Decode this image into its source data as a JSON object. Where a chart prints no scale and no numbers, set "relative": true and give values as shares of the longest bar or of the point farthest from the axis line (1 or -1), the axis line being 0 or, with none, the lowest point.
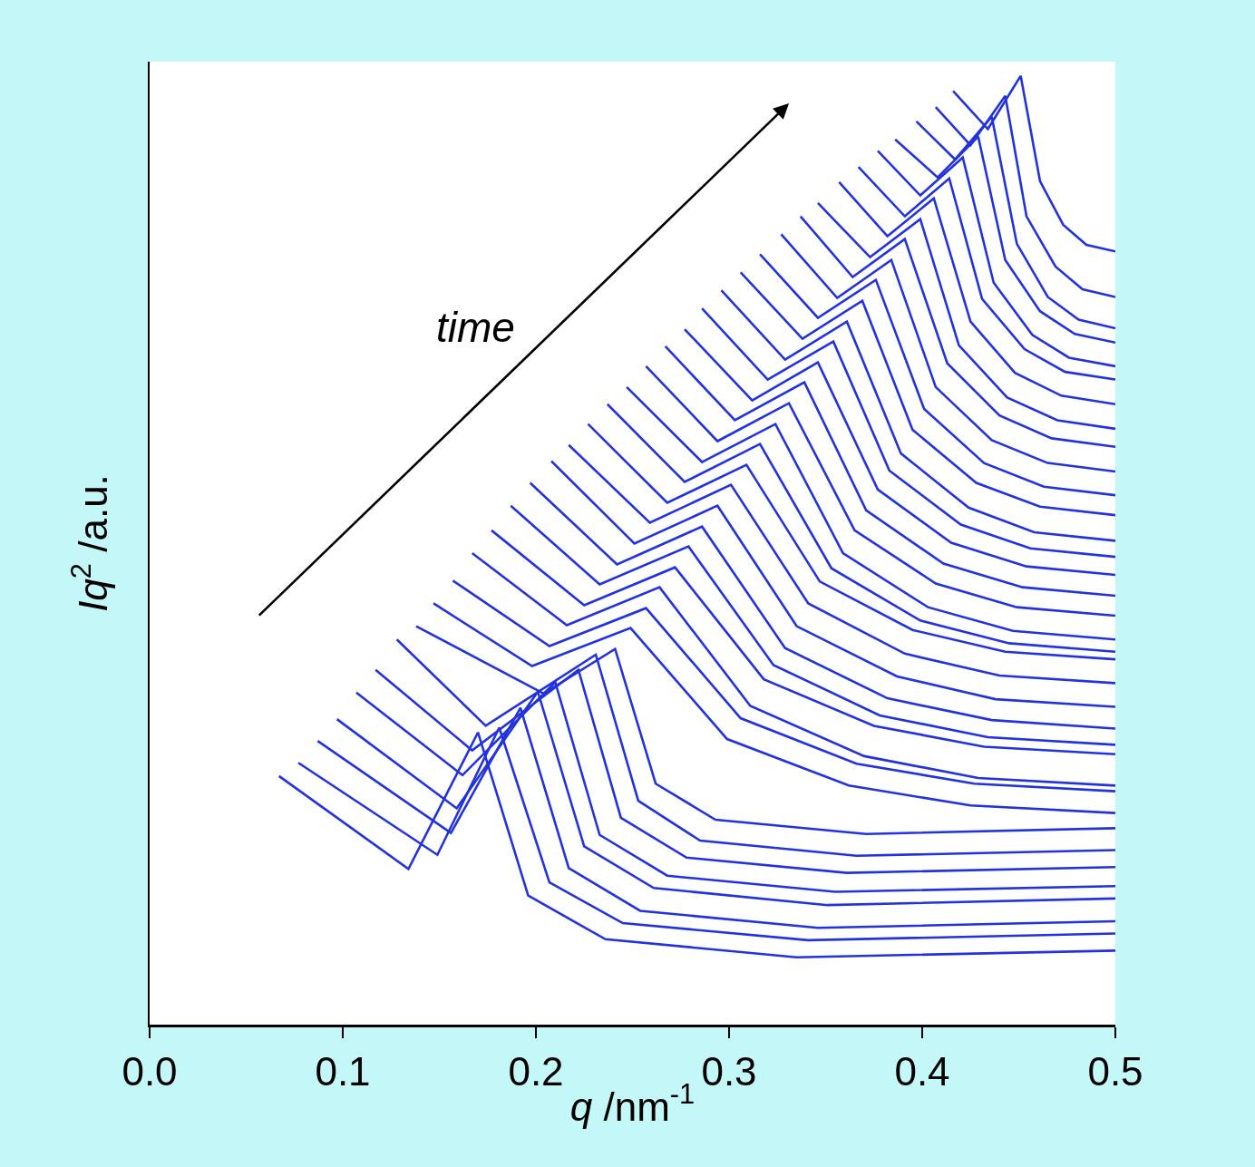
{
  "chart_data": {
    "type": "line",
    "relative": true,
    "xlabel": "q /nm$^{-1}$",
    "ylabel": "Iq$^{2}$ /a.u.",
    "annotations": [
      "time"
    ],
    "xlim": [
      0,
      0.5
    ],
    "xticks": [
      {
        "value": 0,
        "label": "0.0"
      },
      0.1,
      0.2,
      0.3,
      0.4,
      0.5
    ],
    "grid": false,
    "marker": "none",
    "line_style": "solid",
    "series": [
      {
        "color": "#2233dd",
        "x": [
          0.067,
          0.134,
          0.17,
          0.196,
          0.236,
          0.335,
          0.5
        ],
        "values": [
          0.262,
          0.164,
          0.308,
          0.136,
          0.09,
          0.071,
          0.078
        ]
      },
      {
        "color": "#2233dd",
        "x": [
          0.077,
          0.149,
          0.181,
          0.207,
          0.245,
          0.341,
          0.5
        ],
        "values": [
          0.276,
          0.179,
          0.313,
          0.15,
          0.107,
          0.089,
          0.096
        ]
      },
      {
        "color": "#2233dd",
        "x": [
          0.087,
          0.156,
          0.192,
          0.217,
          0.254,
          0.346,
          0.5
        ],
        "values": [
          0.299,
          0.202,
          0.334,
          0.165,
          0.12,
          0.102,
          0.109
        ]
      },
      {
        "color": "#2233dd",
        "x": [
          0.097,
          0.159,
          0.201,
          0.225,
          0.261,
          0.351,
          0.5
        ],
        "values": [
          0.322,
          0.228,
          0.351,
          0.188,
          0.144,
          0.126,
          0.133
        ]
      },
      {
        "color": "#2233dd",
        "x": [
          0.107,
          0.162,
          0.21,
          0.233,
          0.268,
          0.355,
          0.5
        ],
        "values": [
          0.35,
          0.263,
          0.361,
          0.2,
          0.157,
          0.14,
          0.146
        ]
      },
      {
        "color": "#2233dd",
        "x": [
          0.117,
          0.167,
          0.222,
          0.244,
          0.278,
          0.361,
          0.5
        ],
        "values": [
          0.374,
          0.289,
          0.374,
          0.218,
          0.176,
          0.16,
          0.166
        ]
      },
      {
        "color": "#2233dd",
        "x": [
          0.128,
          0.174,
          0.231,
          0.253,
          0.285,
          0.366,
          0.5
        ],
        "values": [
          0.406,
          0.315,
          0.39,
          0.236,
          0.194,
          0.178,
          0.184
        ]
      },
      {
        "color": "#2233dd",
        "x": [
          0.138,
          0.204,
          0.241,
          0.262,
          0.293,
          0.371,
          0.5
        ],
        "values": [
          0.42,
          0.349,
          0.396,
          0.254,
          0.216,
          0.201,
          0.207
        ]
      },
      {
        "color": "#2233dd",
        "x": [
          0.147,
          0.198,
          0.249,
          0.299,
          0.362,
          0.425,
          0.5
        ],
        "values": [
          0.444,
          0.378,
          0.418,
          0.301,
          0.252,
          0.231,
          0.223
        ]
      },
      {
        "color": "#2233dd",
        "x": [
          0.157,
          0.207,
          0.257,
          0.306,
          0.366,
          0.427,
          0.5
        ],
        "values": [
          0.468,
          0.399,
          0.439,
          0.323,
          0.275,
          0.254,
          0.246
        ]
      },
      {
        "color": "#2233dd",
        "x": [
          0.167,
          0.216,
          0.264,
          0.311,
          0.37,
          0.429,
          0.5
        ],
        "values": [
          0.497,
          0.421,
          0.461,
          0.336,
          0.283,
          0.26,
          0.252
        ]
      },
      {
        "color": "#2233dd",
        "x": [
          0.177,
          0.225,
          0.272,
          0.318,
          0.375,
          0.432,
          0.5
        ],
        "values": [
          0.521,
          0.442,
          0.482,
          0.364,
          0.315,
          0.293,
          0.285
        ]
      },
      {
        "color": "#2233dd",
        "x": [
          0.187,
          0.233,
          0.279,
          0.323,
          0.378,
          0.434,
          0.5
        ],
        "values": [
          0.547,
          0.464,
          0.504,
          0.379,
          0.326,
          0.303,
          0.295
        ]
      },
      {
        "color": "#2233dd",
        "x": [
          0.197,
          0.242,
          0.286,
          0.329,
          0.382,
          0.436,
          0.5
        ],
        "values": [
          0.571,
          0.485,
          0.525,
          0.397,
          0.344,
          0.321,
          0.312
        ]
      },
      {
        "color": "#2233dd",
        "x": [
          0.208,
          0.251,
          0.294,
          0.335,
          0.387,
          0.438,
          0.5
        ],
        "values": [
          0.594,
          0.507,
          0.547,
          0.42,
          0.367,
          0.343,
          0.335
        ]
      },
      {
        "color": "#2233dd",
        "x": [
          0.217,
          0.259,
          0.301,
          0.341,
          0.391,
          0.44,
          0.5
        ],
        "values": [
          0.611,
          0.529,
          0.569,
          0.444,
          0.391,
          0.368,
          0.36
        ]
      },
      {
        "color": "#2233dd",
        "x": [
          0.227,
          0.268,
          0.309,
          0.347,
          0.395,
          0.443,
          0.5
        ],
        "values": [
          0.633,
          0.55,
          0.59,
          0.467,
          0.416,
          0.393,
          0.385
        ]
      },
      {
        "color": "#2233dd",
        "x": [
          0.237,
          0.277,
          0.316,
          0.353,
          0.399,
          0.445,
          0.5
        ],
        "values": [
          0.654,
          0.572,
          0.612,
          0.481,
          0.426,
          0.402,
          0.393
        ]
      },
      {
        "color": "#2233dd",
        "x": [
          0.247,
          0.286,
          0.324,
          0.359,
          0.403,
          0.447,
          0.5
        ],
        "values": [
          0.672,
          0.593,
          0.633,
          0.497,
          0.44,
          0.415,
          0.406
        ]
      },
      {
        "color": "#2233dd",
        "x": [
          0.257,
          0.294,
          0.331,
          0.365,
          0.407,
          0.449,
          0.5
        ],
        "values": [
          0.694,
          0.615,
          0.655,
          0.521,
          0.465,
          0.44,
          0.431
        ]
      },
      {
        "color": "#2233dd",
        "x": [
          0.267,
          0.303,
          0.339,
          0.371,
          0.411,
          0.452,
          0.5
        ],
        "values": [
          0.715,
          0.637,
          0.677,
          0.542,
          0.486,
          0.461,
          0.452
        ]
      },
      {
        "color": "#2233dd",
        "x": [
          0.277,
          0.312,
          0.346,
          0.377,
          0.415,
          0.454,
          0.5
        ],
        "values": [
          0.733,
          0.658,
          0.698,
          0.564,
          0.508,
          0.483,
          0.474
        ]
      },
      {
        "color": "#2233dd",
        "x": [
          0.286,
          0.32,
          0.354,
          0.383,
          0.42,
          0.456,
          0.5
        ],
        "values": [
          0.755,
          0.68,
          0.72,
          0.584,
          0.527,
          0.502,
          0.493
        ]
      },
      {
        "color": "#2233dd",
        "x": [
          0.296,
          0.329,
          0.361,
          0.389,
          0.424,
          0.458,
          0.5
        ],
        "values": [
          0.774,
          0.701,
          0.741,
          0.602,
          0.545,
          0.519,
          0.51
        ]
      },
      {
        "color": "#2233dd",
        "x": [
          0.306,
          0.338,
          0.369,
          0.395,
          0.428,
          0.461,
          0.5
        ],
        "values": [
          0.793,
          0.723,
          0.763,
          0.627,
          0.571,
          0.546,
          0.537
        ]
      },
      {
        "color": "#2233dd",
        "x": [
          0.316,
          0.346,
          0.376,
          0.401,
          0.432,
          0.463,
          0.5
        ],
        "values": [
          0.812,
          0.745,
          0.785,
          0.649,
          0.592,
          0.567,
          0.558
        ]
      },
      {
        "color": "#2233dd",
        "x": [
          0.327,
          0.356,
          0.384,
          0.407,
          0.436,
          0.465,
          0.5
        ],
        "values": [
          0.833,
          0.766,
          0.806,
          0.672,
          0.616,
          0.592,
          0.583
        ]
      },
      {
        "color": "#2233dd",
        "x": [
          0.337,
          0.364,
          0.391,
          0.413,
          0.44,
          0.467,
          0.5
        ],
        "values": [
          0.852,
          0.788,
          0.828,
          0.697,
          0.642,
          0.618,
          0.609
        ]
      },
      {
        "color": "#2233dd",
        "x": [
          0.346,
          0.373,
          0.399,
          0.419,
          0.444,
          0.47,
          0.5
        ],
        "values": [
          0.866,
          0.809,
          0.849,
          0.716,
          0.661,
          0.637,
          0.628
        ]
      },
      {
        "color": "#2233dd",
        "x": [
          0.357,
          0.382,
          0.406,
          0.425,
          0.448,
          0.472,
          0.5
        ],
        "values": [
          0.888,
          0.831,
          0.871,
          0.741,
          0.687,
          0.663,
          0.654
        ]
      },
      {
        "color": "#2233dd",
        "x": [
          0.367,
          0.391,
          0.414,
          0.431,
          0.453,
          0.474,
          0.5
        ],
        "values": [
          0.904,
          0.852,
          0.892,
          0.765,
          0.712,
          0.688,
          0.68
        ]
      },
      {
        "color": "#2233dd",
        "x": [
          0.377,
          0.399,
          0.421,
          0.437,
          0.457,
          0.476,
          0.5
        ],
        "values": [
          0.921,
          0.874,
          0.914,
          0.782,
          0.727,
          0.703,
          0.694
        ]
      },
      {
        "color": "#2233dd",
        "x": [
          0.386,
          0.408,
          0.429,
          0.443,
          0.461,
          0.479,
          0.5
        ],
        "values": [
          0.933,
          0.893,
          0.936,
          0.806,
          0.752,
          0.728,
          0.719
        ]
      },
      {
        "color": "#2233dd",
        "x": [
          0.397,
          0.417,
          0.436,
          0.449,
          0.465,
          0.481,
          0.5
        ],
        "values": [
          0.952,
          0.912,
          0.957,
          0.823,
          0.767,
          0.743,
          0.734
        ]
      },
      {
        "color": "#2233dd",
        "x": [
          0.407,
          0.425,
          0.443,
          0.454,
          0.469,
          0.483,
          0.5
        ],
        "values": [
          0.967,
          0.927,
          0.979,
          0.852,
          0.799,
          0.775,
          0.767
        ]
      },
      {
        "color": "#2233dd",
        "x": [
          0.416,
          0.434,
          0.451,
          0.461,
          0.473,
          0.485,
          0.5
        ],
        "values": [
          0.984,
          0.944,
          1.0,
          0.889,
          0.843,
          0.822,
          0.815
        ]
      }
    ]
  }
}
